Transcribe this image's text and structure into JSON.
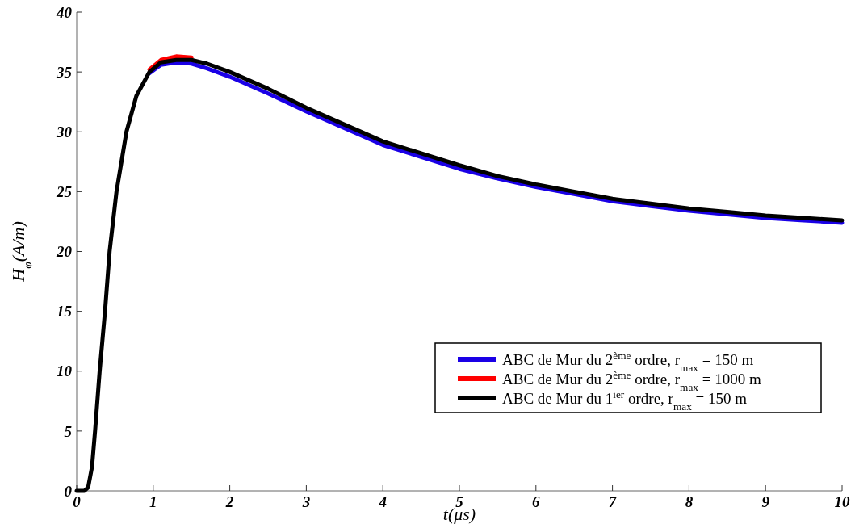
{
  "chart_data": {
    "type": "line",
    "xlabel": "t(μs)",
    "ylabel": "H$_{φ}$(A/m)",
    "xlim": [
      0,
      10
    ],
    "ylim": [
      0,
      40
    ],
    "xticks": [
      0,
      1,
      2,
      3,
      4,
      5,
      6,
      7,
      8,
      9,
      10
    ],
    "yticks": [
      0,
      5,
      10,
      15,
      20,
      25,
      30,
      35,
      40
    ],
    "grid": false,
    "legend": "bottom right",
    "marker": "none",
    "line_style": "solid",
    "x": [
      0,
      0.1,
      0.15,
      0.2,
      0.24,
      0.3,
      0.37,
      0.43,
      0.52,
      0.65,
      0.78,
      0.95,
      1.1,
      1.3,
      1.5,
      1.7,
      2,
      2.5,
      3,
      3.5,
      4,
      4.5,
      5,
      5.5,
      6,
      6.5,
      7,
      7.5,
      8,
      8.5,
      9,
      9.5,
      10
    ],
    "series": [
      {
        "name": "ABC de Mur du 2$^{ème}$ ordre, r$_{max}$ = 150 m",
        "color": "#1a00e6",
        "values": [
          null,
          null,
          null,
          null,
          null,
          null,
          null,
          null,
          null,
          null,
          null,
          34.9,
          35.6,
          35.8,
          35.7,
          35.3,
          34.6,
          33.2,
          31.7,
          30.3,
          28.9,
          27.9,
          26.9,
          26.1,
          25.4,
          24.8,
          24.2,
          23.8,
          23.4,
          23.1,
          22.8,
          22.6,
          22.4
        ]
      },
      {
        "name": "ABC de Mur du 2$^{ème}$ ordre, r$_{max}$ = 1000 m",
        "color": "#ff0000",
        "values": [
          null,
          null,
          null,
          null,
          null,
          null,
          null,
          null,
          null,
          null,
          null,
          35.2,
          36.0,
          36.3,
          36.2,
          null,
          null,
          null,
          null,
          null,
          null,
          null,
          null,
          null,
          null,
          null,
          null,
          null,
          null,
          null,
          null,
          null,
          null
        ]
      },
      {
        "name": "ABC de Mur du 1$^{ier}$ ordre, r$_{max}$ = 150 m",
        "color": "#000000",
        "values": [
          0,
          0,
          0.3,
          2,
          5,
          10,
          15,
          20,
          25,
          30,
          33,
          35,
          35.8,
          36.0,
          36.0,
          35.7,
          35.0,
          33.6,
          32.0,
          30.6,
          29.2,
          28.2,
          27.2,
          26.3,
          25.6,
          25.0,
          24.4,
          24.0,
          23.6,
          23.3,
          23.0,
          22.8,
          22.6
        ]
      }
    ]
  }
}
